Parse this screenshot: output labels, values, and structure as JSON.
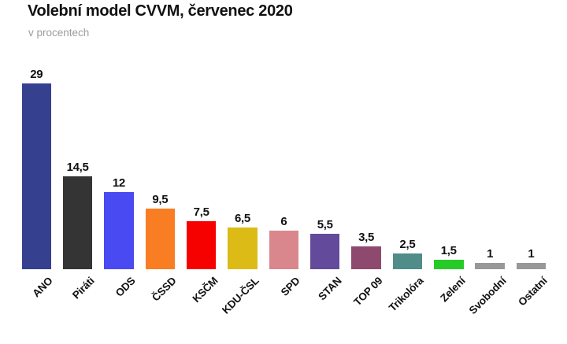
{
  "header": {
    "title": "Volební model CVVM, červenec 2020",
    "subtitle": "v procentech"
  },
  "chart_data": {
    "type": "bar",
    "title": "Volební model CVVM, červenec 2020",
    "subtitle": "v procentech",
    "unit": "%",
    "categories": [
      "ANO",
      "Piráti",
      "ODS",
      "ČSSD",
      "KSČM",
      "KDU-ČSL",
      "SPD",
      "STAN",
      "TOP 09",
      "Trikolóra",
      "Zelení",
      "Svobodní",
      "Ostatní"
    ],
    "values": [
      29,
      14.5,
      12,
      9.5,
      7.5,
      6.5,
      6,
      5.5,
      3.5,
      2.5,
      1.5,
      1,
      1
    ],
    "value_labels": [
      "29",
      "14,5",
      "12",
      "9,5",
      "7,5",
      "6,5",
      "6",
      "5,5",
      "3,5",
      "2,5",
      "1,5",
      "1",
      "1"
    ],
    "colors": [
      "#35418f",
      "#343434",
      "#4a4af2",
      "#f97d22",
      "#f70000",
      "#dcbb16",
      "#d9878d",
      "#634a9b",
      "#8e4a6e",
      "#508c88",
      "#27cb27",
      "#989898",
      "#989898"
    ],
    "xlabel": "",
    "ylabel": "",
    "ylim": [
      0,
      30
    ],
    "grid": false,
    "legend": false,
    "axis_lines": false,
    "x_tick_rotation_deg": 45,
    "value_label_format": "decimal-comma",
    "text_color": "#111111",
    "subtitle_color": "#9c9c9c",
    "background_color": "#ffffff"
  }
}
